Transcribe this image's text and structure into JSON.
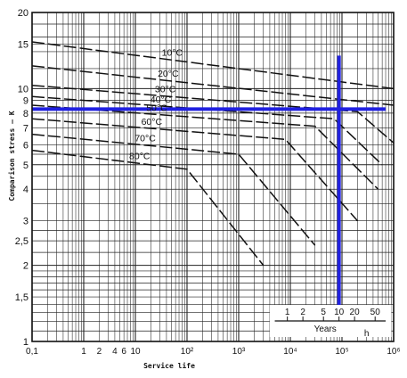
{
  "chart_data": {
    "type": "line",
    "title": "",
    "xlabel": "Service life",
    "ylabel": "Comparison stress – K",
    "x_scale": "log",
    "y_scale": "log",
    "xlim": [
      0.1,
      1000000
    ],
    "ylim": [
      1,
      20
    ],
    "grid": true,
    "x_unit": "h",
    "x_ticks": [
      {
        "value": 0.1,
        "label": "0,1"
      },
      {
        "value": 1,
        "label": "1"
      },
      {
        "value": 2,
        "label": "2"
      },
      {
        "value": 4,
        "label": "4"
      },
      {
        "value": 6,
        "label": "6"
      },
      {
        "value": 10,
        "label": "10"
      },
      {
        "value": 100,
        "label": "10²"
      },
      {
        "value": 1000,
        "label": "10³"
      },
      {
        "value": 10000,
        "label": "10⁴"
      },
      {
        "value": 100000,
        "label": "10⁵"
      },
      {
        "value": 1000000,
        "label": "10⁶"
      }
    ],
    "y_ticks": [
      {
        "value": 1,
        "label": "1"
      },
      {
        "value": 1.5,
        "label": "1,5"
      },
      {
        "value": 2,
        "label": "2"
      },
      {
        "value": 2.5,
        "label": "2,5"
      },
      {
        "value": 3,
        "label": "3"
      },
      {
        "value": 4,
        "label": "4"
      },
      {
        "value": 5,
        "label": "5"
      },
      {
        "value": 6,
        "label": "6"
      },
      {
        "value": 7,
        "label": "7"
      },
      {
        "value": 8,
        "label": "8"
      },
      {
        "value": 9,
        "label": "9"
      },
      {
        "value": 10,
        "label": "10"
      },
      {
        "value": 15,
        "label": "15"
      },
      {
        "value": 20,
        "label": "20"
      }
    ],
    "years_scale": {
      "label": "Years",
      "ticks": [
        {
          "value": 8760,
          "label": "1"
        },
        {
          "value": 17520,
          "label": "2"
        },
        {
          "value": 43800,
          "label": "5"
        },
        {
          "value": 87600,
          "label": "10"
        },
        {
          "value": 175200,
          "label": "20"
        },
        {
          "value": 438000,
          "label": "50"
        }
      ]
    },
    "series": [
      {
        "name": "10°C",
        "points": [
          [
            0.1,
            15.3
          ],
          [
            1000000,
            10.0
          ]
        ]
      },
      {
        "name": "20°C",
        "points": [
          [
            0.1,
            12.3
          ],
          [
            1000000,
            8.6
          ]
        ]
      },
      {
        "name": "30°C",
        "points": [
          [
            0.1,
            10.3
          ],
          [
            200000,
            8.1
          ],
          [
            1000000,
            6.1
          ]
        ]
      },
      {
        "name": "40°C",
        "points": [
          [
            0.1,
            9.3
          ],
          [
            70000,
            7.6
          ],
          [
            600000,
            5.0
          ]
        ]
      },
      {
        "name": "50°C",
        "points": [
          [
            0.1,
            8.6
          ],
          [
            30000,
            7.1
          ],
          [
            500000,
            4.0
          ]
        ]
      },
      {
        "name": "60°C",
        "points": [
          [
            0.1,
            7.6
          ],
          [
            8000,
            6.3
          ],
          [
            200000,
            3.0
          ]
        ]
      },
      {
        "name": "70°C",
        "points": [
          [
            0.1,
            6.6
          ],
          [
            1000,
            5.5
          ],
          [
            30000,
            2.4
          ]
        ]
      },
      {
        "name": "80°C",
        "points": [
          [
            0.1,
            5.7
          ],
          [
            100,
            4.8
          ],
          [
            3000,
            2.0
          ]
        ]
      }
    ],
    "markers": {
      "color": "#2020e0",
      "horizontal_y": 8.3,
      "vertical_x": 87600,
      "vertical_range": [
        1.1,
        13.5
      ]
    }
  }
}
